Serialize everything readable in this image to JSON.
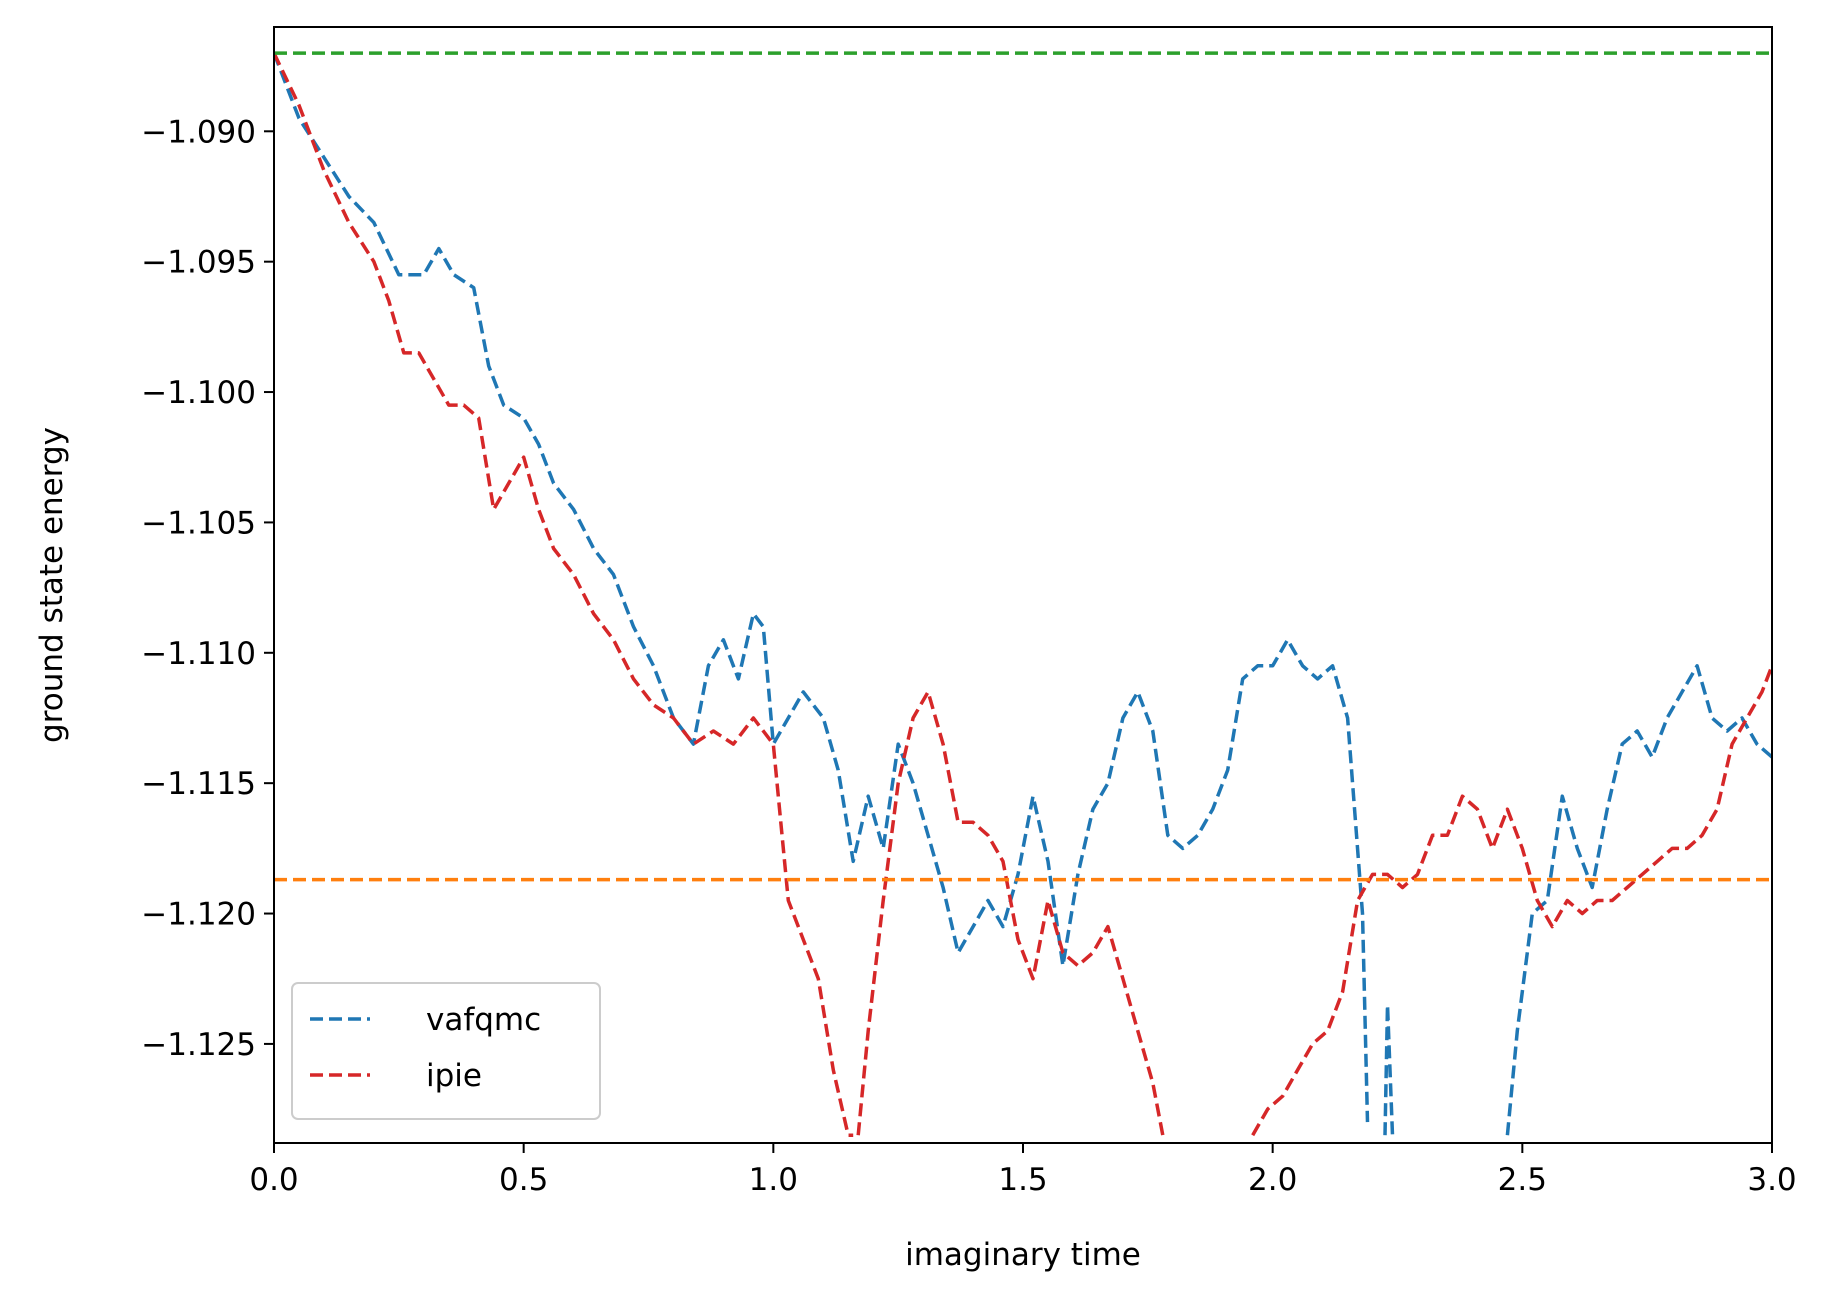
{
  "chart_data": {
    "type": "line",
    "xlabel": "imaginary time",
    "ylabel": "ground state energy",
    "xlim": [
      0.0,
      3.0
    ],
    "ylim": [
      -1.1288,
      -1.086
    ],
    "xticks": [
      0.0,
      0.5,
      1.0,
      1.5,
      2.0,
      2.5,
      3.0
    ],
    "xtick_labels": [
      "0.0",
      "0.5",
      "1.0",
      "1.5",
      "2.0",
      "2.5",
      "3.0"
    ],
    "yticks": [
      -1.09,
      -1.095,
      -1.1,
      -1.105,
      -1.11,
      -1.115,
      -1.12,
      -1.125
    ],
    "ytick_labels": [
      "−1.090",
      "−1.095",
      "−1.100",
      "−1.105",
      "−1.110",
      "−1.115",
      "−1.120",
      "−1.125"
    ],
    "grid": false,
    "legend_position": "lower-left",
    "series": [
      {
        "name": "vafqmc",
        "color": "#1f77b4",
        "style": "dashed",
        "x": [
          0.0,
          0.05,
          0.1,
          0.15,
          0.2,
          0.25,
          0.3,
          0.33,
          0.36,
          0.4,
          0.43,
          0.46,
          0.5,
          0.53,
          0.56,
          0.6,
          0.64,
          0.68,
          0.72,
          0.76,
          0.8,
          0.84,
          0.87,
          0.9,
          0.93,
          0.96,
          0.98,
          1.0,
          1.03,
          1.06,
          1.1,
          1.13,
          1.16,
          1.19,
          1.22,
          1.25,
          1.28,
          1.31,
          1.34,
          1.37,
          1.4,
          1.43,
          1.46,
          1.49,
          1.52,
          1.55,
          1.58,
          1.61,
          1.64,
          1.67,
          1.7,
          1.73,
          1.76,
          1.79,
          1.82,
          1.85,
          1.88,
          1.91,
          1.94,
          1.97,
          2.0,
          2.03,
          2.06,
          2.09,
          2.12,
          2.15,
          2.18,
          2.19
        ],
        "values": [
          -1.087,
          -1.0895,
          -1.091,
          -1.0925,
          -1.0935,
          -1.0955,
          -1.0955,
          -1.0945,
          -1.0955,
          -1.096,
          -1.099,
          -1.1005,
          -1.101,
          -1.102,
          -1.1035,
          -1.1045,
          -1.106,
          -1.107,
          -1.109,
          -1.1105,
          -1.1125,
          -1.1135,
          -1.1105,
          -1.1095,
          -1.111,
          -1.1085,
          -1.109,
          -1.1135,
          -1.1125,
          -1.1115,
          -1.1125,
          -1.1145,
          -1.118,
          -1.1155,
          -1.1175,
          -1.1135,
          -1.115,
          -1.117,
          -1.119,
          -1.1215,
          -1.1205,
          -1.1195,
          -1.1205,
          -1.1185,
          -1.1155,
          -1.118,
          -1.122,
          -1.1185,
          -1.116,
          -1.115,
          -1.1125,
          -1.1115,
          -1.113,
          -1.117,
          -1.1175,
          -1.117,
          -1.116,
          -1.1145,
          -1.111,
          -1.1105,
          -1.1105,
          -1.1095,
          -1.1105,
          -1.111,
          -1.1105,
          -1.1125,
          -1.12,
          -1.128
        ]
      },
      {
        "name": "vafqmc",
        "color": "#1f77b4",
        "style": "dashed",
        "x": [
          2.225,
          2.23,
          2.24
        ],
        "values": [
          -1.1285,
          -1.1235,
          -1.1285
        ]
      },
      {
        "name": "vafqmc",
        "color": "#1f77b4",
        "style": "dashed",
        "x": [
          2.47,
          2.49,
          2.52,
          2.55,
          2.58,
          2.61,
          2.64,
          2.67,
          2.7,
          2.73,
          2.76,
          2.79,
          2.82,
          2.85,
          2.88,
          2.91,
          2.94,
          2.97,
          3.0
        ],
        "values": [
          -1.1285,
          -1.1245,
          -1.12,
          -1.1195,
          -1.1155,
          -1.1175,
          -1.119,
          -1.116,
          -1.1135,
          -1.113,
          -1.114,
          -1.1125,
          -1.1115,
          -1.1105,
          -1.1125,
          -1.113,
          -1.1125,
          -1.1135,
          -1.114
        ]
      },
      {
        "name": "ipie",
        "color": "#d62728",
        "style": "dashed",
        "x": [
          0.0,
          0.05,
          0.1,
          0.15,
          0.2,
          0.23,
          0.26,
          0.29,
          0.32,
          0.35,
          0.38,
          0.41,
          0.44,
          0.47,
          0.5,
          0.53,
          0.56,
          0.6,
          0.64,
          0.68,
          0.72,
          0.76,
          0.8,
          0.84,
          0.88,
          0.92,
          0.96,
          1.0,
          1.03,
          1.06,
          1.09,
          1.12,
          1.15,
          1.16
        ],
        "values": [
          -1.087,
          -1.089,
          -1.0915,
          -1.0935,
          -1.095,
          -1.0965,
          -1.0985,
          -1.0985,
          -1.0995,
          -1.1005,
          -1.1005,
          -1.101,
          -1.1045,
          -1.1035,
          -1.1025,
          -1.1045,
          -1.106,
          -1.107,
          -1.1085,
          -1.1095,
          -1.111,
          -1.112,
          -1.1125,
          -1.1135,
          -1.113,
          -1.1135,
          -1.1125,
          -1.1135,
          -1.1195,
          -1.121,
          -1.1225,
          -1.126,
          -1.1285,
          -1.1285
        ]
      },
      {
        "name": "ipie",
        "color": "#d62728",
        "style": "dashed",
        "x": [
          1.17,
          1.19,
          1.22,
          1.25,
          1.28,
          1.31,
          1.34,
          1.37,
          1.4,
          1.43,
          1.46,
          1.49,
          1.52,
          1.55,
          1.58,
          1.61,
          1.64,
          1.67,
          1.7,
          1.73,
          1.76,
          1.78
        ],
        "values": [
          -1.1285,
          -1.1245,
          -1.1195,
          -1.115,
          -1.1125,
          -1.1115,
          -1.1135,
          -1.1165,
          -1.1165,
          -1.117,
          -1.118,
          -1.121,
          -1.1225,
          -1.1195,
          -1.1215,
          -1.122,
          -1.1215,
          -1.1205,
          -1.1225,
          -1.1245,
          -1.1265,
          -1.1285
        ]
      },
      {
        "name": "ipie",
        "color": "#d62728",
        "style": "dashed",
        "x": [
          1.96,
          1.99,
          2.02,
          2.05,
          2.08,
          2.11,
          2.14,
          2.17,
          2.2,
          2.23,
          2.26,
          2.29,
          2.32,
          2.35,
          2.38,
          2.41,
          2.44,
          2.47,
          2.5,
          2.53,
          2.56,
          2.59,
          2.62,
          2.65,
          2.68,
          2.71,
          2.74,
          2.77,
          2.8,
          2.83,
          2.86,
          2.89,
          2.92,
          2.95,
          2.98,
          3.0
        ],
        "values": [
          -1.1285,
          -1.1275,
          -1.127,
          -1.126,
          -1.125,
          -1.1245,
          -1.123,
          -1.1195,
          -1.1185,
          -1.1185,
          -1.119,
          -1.1185,
          -1.117,
          -1.117,
          -1.1155,
          -1.116,
          -1.1175,
          -1.116,
          -1.1175,
          -1.1195,
          -1.1205,
          -1.1195,
          -1.12,
          -1.1195,
          -1.1195,
          -1.119,
          -1.1185,
          -1.118,
          -1.1175,
          -1.1175,
          -1.117,
          -1.116,
          -1.1135,
          -1.1125,
          -1.1115,
          -1.1105
        ]
      },
      {
        "name": "",
        "color": "#2ca02c",
        "style": "dashed",
        "x": [
          0.0,
          3.0
        ],
        "values": [
          -1.087,
          -1.087
        ]
      },
      {
        "name": "",
        "color": "#ff7f0e",
        "style": "dashed",
        "x": [
          0.0,
          3.0
        ],
        "values": [
          -1.1187,
          -1.1187
        ]
      }
    ],
    "legend": [
      {
        "label": "vafqmc",
        "color": "#1f77b4"
      },
      {
        "label": "ipie",
        "color": "#d62728"
      }
    ]
  }
}
